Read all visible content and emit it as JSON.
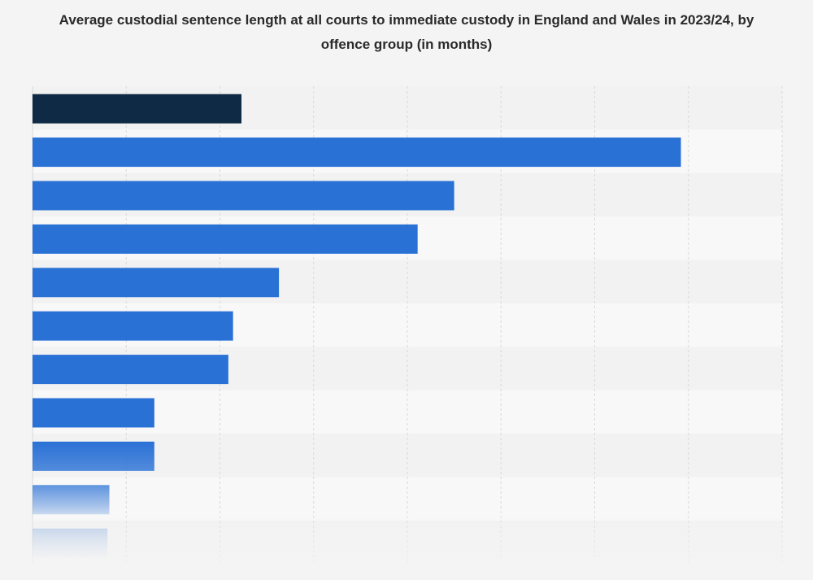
{
  "chart_data": {
    "type": "bar",
    "orientation": "horizontal",
    "title": "Average custodial sentence length at all courts to immediate custody in England and Wales in 2023/24, by offence group (in months)",
    "xlabel": "",
    "ylabel": "",
    "categories": [
      "",
      "",
      "",
      "",
      "",
      "",
      "",
      "",
      "",
      "",
      ""
    ],
    "values": [
      22.3,
      69.2,
      45.0,
      41.1,
      26.3,
      21.4,
      20.9,
      13.0,
      13.0,
      8.2,
      8.0
    ],
    "xlim": [
      0,
      80
    ],
    "grid": true,
    "legend": "none",
    "colors": {
      "highlight": "#0f2a44",
      "bar": "#2a71d6",
      "grid": "#d8d8d8",
      "band_light": "#f8f8f8",
      "band_dark": "#f2f2f2"
    },
    "highlight_index": 0
  }
}
